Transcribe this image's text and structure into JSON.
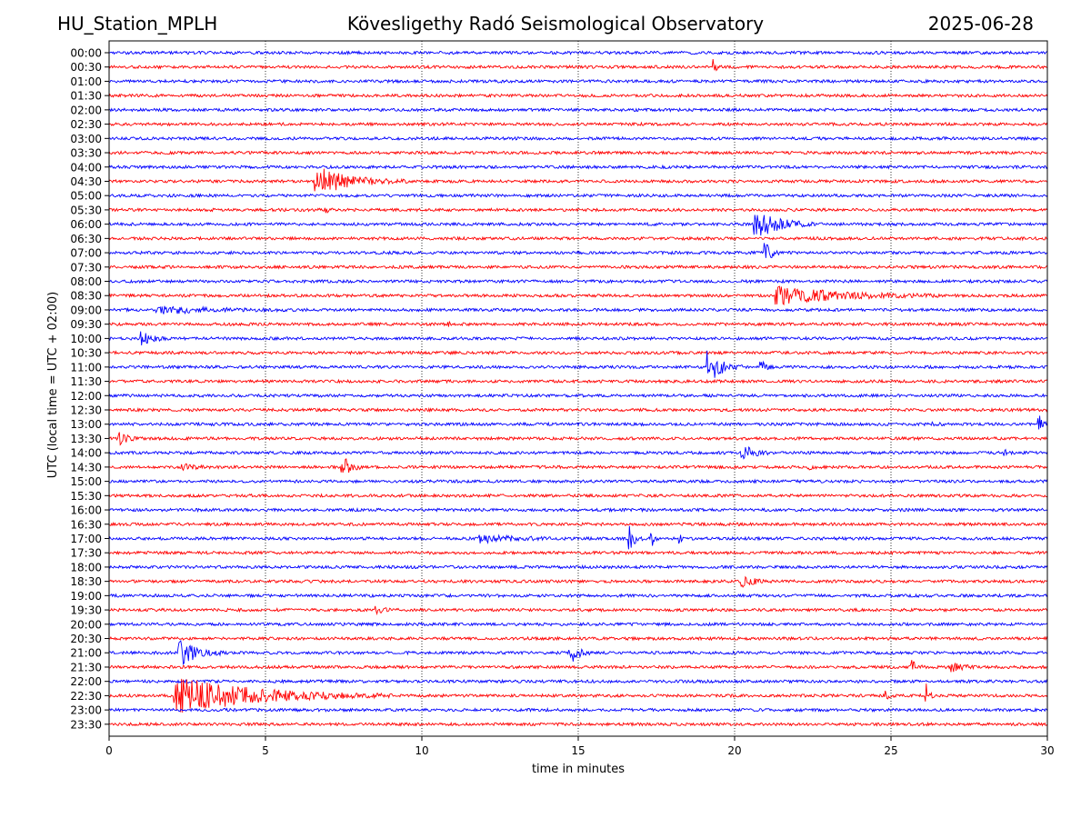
{
  "header": {
    "station": "HU_Station_MPLH",
    "observatory": "Kövesligethy Radó Seismological Observatory",
    "date": "2025-06-28"
  },
  "chart_data": {
    "type": "line",
    "title": "Kövesligethy Radó Seismological Observatory",
    "xlabel": "time in minutes",
    "ylabel": "UTC (local time = UTC + 02:00)",
    "xlim": [
      0,
      30
    ],
    "xticks": [
      0,
      5,
      10,
      15,
      20,
      25,
      30
    ],
    "grid": "vertical dotted",
    "trace_colors": [
      "#0000ff",
      "#ff0000"
    ],
    "rows": [
      "00:00",
      "00:30",
      "01:00",
      "01:30",
      "02:00",
      "02:30",
      "03:00",
      "03:30",
      "04:00",
      "04:30",
      "05:00",
      "05:30",
      "06:00",
      "06:30",
      "07:00",
      "07:30",
      "08:00",
      "08:30",
      "09:00",
      "09:30",
      "10:00",
      "10:30",
      "11:00",
      "11:30",
      "12:00",
      "12:30",
      "13:00",
      "13:30",
      "14:00",
      "14:30",
      "15:00",
      "15:30",
      "16:00",
      "16:30",
      "17:00",
      "17:30",
      "18:00",
      "18:30",
      "19:00",
      "19:30",
      "20:00",
      "20:30",
      "21:00",
      "21:30",
      "22:00",
      "22:30",
      "23:00",
      "23:30"
    ],
    "events": [
      {
        "row": "00:30",
        "start": 19.3,
        "dur": 0.3,
        "amp": 1.0
      },
      {
        "row": "04:30",
        "start": 6.55,
        "dur": 3.0,
        "amp": 1.6
      },
      {
        "row": "05:30",
        "start": 6.9,
        "dur": 0.3,
        "amp": 0.3
      },
      {
        "row": "06:00",
        "start": 20.6,
        "dur": 2.0,
        "amp": 1.8
      },
      {
        "row": "07:00",
        "start": 20.9,
        "dur": 0.7,
        "amp": 1.4
      },
      {
        "row": "07:00",
        "start": 11.2,
        "dur": 0.3,
        "amp": 0.3
      },
      {
        "row": "08:30",
        "start": 21.3,
        "dur": 5.5,
        "amp": 1.0
      },
      {
        "row": "09:00",
        "start": 1.5,
        "dur": 4.5,
        "amp": 0.4
      },
      {
        "row": "09:30",
        "start": 10.8,
        "dur": 0.3,
        "amp": 0.35
      },
      {
        "row": "10:00",
        "start": 1.0,
        "dur": 0.9,
        "amp": 0.9
      },
      {
        "row": "11:00",
        "start": 19.1,
        "dur": 1.2,
        "amp": 2.0
      },
      {
        "row": "11:00",
        "start": 20.8,
        "dur": 0.5,
        "amp": 0.8
      },
      {
        "row": "13:00",
        "start": 29.7,
        "dur": 0.3,
        "amp": 1.4
      },
      {
        "row": "13:00",
        "start": 26.3,
        "dur": 0.4,
        "amp": 0.3
      },
      {
        "row": "13:30",
        "start": 0.3,
        "dur": 0.7,
        "amp": 0.8
      },
      {
        "row": "14:00",
        "start": 20.2,
        "dur": 1.0,
        "amp": 1.0
      },
      {
        "row": "14:00",
        "start": 28.6,
        "dur": 0.4,
        "amp": 0.3
      },
      {
        "row": "14:30",
        "start": 7.4,
        "dur": 0.7,
        "amp": 1.7
      },
      {
        "row": "14:30",
        "start": 2.3,
        "dur": 1.0,
        "amp": 0.35
      },
      {
        "row": "14:30",
        "start": 22.3,
        "dur": 0.4,
        "amp": 0.3
      },
      {
        "row": "17:00",
        "start": 11.8,
        "dur": 3.0,
        "amp": 0.45
      },
      {
        "row": "17:00",
        "start": 16.6,
        "dur": 0.5,
        "amp": 1.5
      },
      {
        "row": "17:00",
        "start": 17.3,
        "dur": 0.3,
        "amp": 1.3
      },
      {
        "row": "17:00",
        "start": 18.2,
        "dur": 0.3,
        "amp": 0.7
      },
      {
        "row": "18:30",
        "start": 20.2,
        "dur": 1.0,
        "amp": 0.7
      },
      {
        "row": "19:30",
        "start": 8.5,
        "dur": 0.8,
        "amp": 0.35
      },
      {
        "row": "21:00",
        "start": 2.2,
        "dur": 1.6,
        "amp": 1.5
      },
      {
        "row": "21:00",
        "start": 14.7,
        "dur": 0.7,
        "amp": 1.4
      },
      {
        "row": "21:30",
        "start": 25.6,
        "dur": 0.4,
        "amp": 1.2
      },
      {
        "row": "21:30",
        "start": 26.9,
        "dur": 1.0,
        "amp": 0.5
      },
      {
        "row": "22:30",
        "start": 2.05,
        "dur": 7.0,
        "amp": 2.1
      },
      {
        "row": "22:30",
        "start": 24.8,
        "dur": 0.3,
        "amp": 0.6
      },
      {
        "row": "22:30",
        "start": 26.1,
        "dur": 0.3,
        "amp": 1.7
      }
    ]
  }
}
